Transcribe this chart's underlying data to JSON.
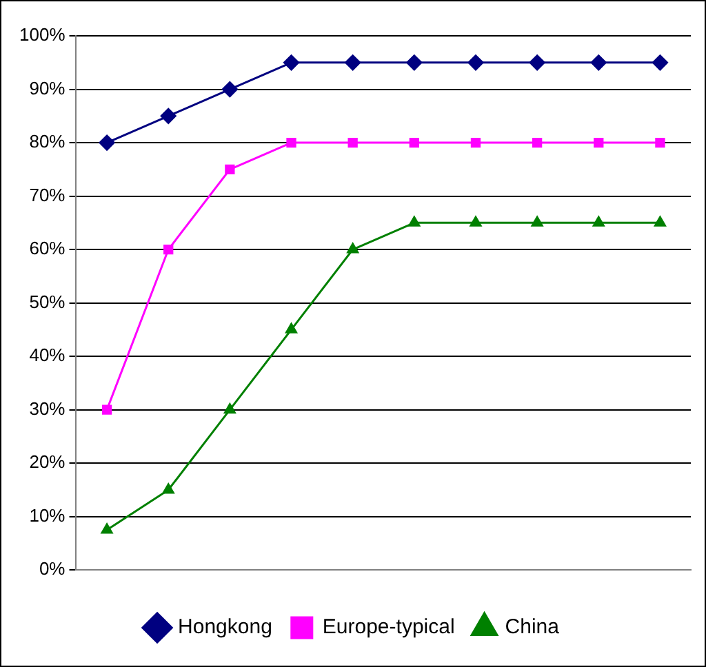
{
  "chart_data": {
    "type": "line",
    "categories": [
      null,
      null,
      null,
      null,
      null,
      null,
      null,
      null,
      null,
      null
    ],
    "series": [
      {
        "name": "Hongkong",
        "color": "#000080",
        "marker": "diamond",
        "values": [
          80,
          85,
          90,
          95,
          95,
          95,
          95,
          95,
          95,
          95
        ]
      },
      {
        "name": "Europe-typical",
        "color": "#ff00ff",
        "marker": "square",
        "values": [
          30,
          60,
          75,
          80,
          80,
          80,
          80,
          80,
          80,
          80
        ]
      },
      {
        "name": "China",
        "color": "#008000",
        "marker": "triangle",
        "values": [
          7.5,
          15,
          30,
          45,
          60,
          65,
          65,
          65,
          65,
          65
        ]
      }
    ],
    "ylim": [
      0,
      100
    ],
    "yticks": [
      {
        "value": 0,
        "label": "0%"
      },
      {
        "value": 10,
        "label": "10%"
      },
      {
        "value": 20,
        "label": "20%"
      },
      {
        "value": 30,
        "label": "30%"
      },
      {
        "value": 40,
        "label": "40%"
      },
      {
        "value": 50,
        "label": "50%"
      },
      {
        "value": 60,
        "label": "60%"
      },
      {
        "value": 70,
        "label": "70%"
      },
      {
        "value": 80,
        "label": "80%"
      },
      {
        "value": 90,
        "label": "90%"
      },
      {
        "value": 100,
        "label": "100%"
      }
    ],
    "grid": "y",
    "legend": "bottom"
  }
}
